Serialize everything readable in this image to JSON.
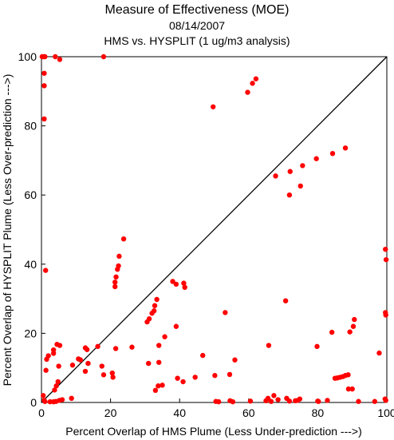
{
  "chart_data": {
    "type": "scatter",
    "title": "Measure of Effectiveness (MOE)",
    "subtitle": "08/14/2007",
    "subtitle2": "HMS vs. HYSPLIT  (1 ug/m3 analysis)",
    "xlabel": "Percent Overlap of HMS Plume (Less Under-prediction --->)",
    "ylabel": "Percent Overlap of HYSPLIT Plume (Less Over-prediction --->)",
    "xlim": [
      0,
      100
    ],
    "ylim": [
      0,
      100
    ],
    "xticks": [
      "0",
      "20",
      "40",
      "60",
      "80",
      "100"
    ],
    "yticks": [
      "0",
      "20",
      "40",
      "60",
      "80",
      "100"
    ],
    "grid": false,
    "reference_line": "1:1 diagonal",
    "marker_color": "#ff0000",
    "line_color": "#000000",
    "series": [
      {
        "points": [
          [
            0.2,
            100
          ],
          [
            0.6,
            100
          ],
          [
            1.0,
            100
          ],
          [
            4.0,
            100
          ],
          [
            5.3,
            99.2
          ],
          [
            18.0,
            100
          ],
          [
            0.8,
            95.2
          ],
          [
            0.8,
            91.6
          ],
          [
            0.8,
            82
          ],
          [
            1.2,
            38.2
          ],
          [
            0.5,
            2
          ],
          [
            0.8,
            0.6
          ],
          [
            1.0,
            0.3
          ],
          [
            2.5,
            0.2
          ],
          [
            3.5,
            0.2
          ],
          [
            4.2,
            0.3
          ],
          [
            5.2,
            0.6
          ],
          [
            6.0,
            0.8
          ],
          [
            8.7,
            1.2
          ],
          [
            1.3,
            9.3
          ],
          [
            1.5,
            12.5
          ],
          [
            2.0,
            13.5
          ],
          [
            3.5,
            14.2
          ],
          [
            3.5,
            15.2
          ],
          [
            4.5,
            16.8
          ],
          [
            5.3,
            16.5
          ],
          [
            3.8,
            3.6
          ],
          [
            4.3,
            4.8
          ],
          [
            4.8,
            6.0
          ],
          [
            5.0,
            10.5
          ],
          [
            9.0,
            10.8
          ],
          [
            10.7,
            12.6
          ],
          [
            11.3,
            12.3
          ],
          [
            12.7,
            15.8
          ],
          [
            13.2,
            15.3
          ],
          [
            13.5,
            11.3
          ],
          [
            12.7,
            9.0
          ],
          [
            16.3,
            16.2
          ],
          [
            17.5,
            10.5
          ],
          [
            18.0,
            8.0
          ],
          [
            20.5,
            8.5
          ],
          [
            20.7,
            7.3
          ],
          [
            21.5,
            15.6
          ],
          [
            21.3,
            33.5
          ],
          [
            21.3,
            34.8
          ],
          [
            21.6,
            36.3
          ],
          [
            22.0,
            38.5
          ],
          [
            22.3,
            39.5
          ],
          [
            22.5,
            42.3
          ],
          [
            23.8,
            47.3
          ],
          [
            26.2,
            16.0
          ],
          [
            30.6,
            23.3
          ],
          [
            31.2,
            24.2
          ],
          [
            31.0,
            11.3
          ],
          [
            32.0,
            25.8
          ],
          [
            32.6,
            26.5
          ],
          [
            32.8,
            28.0
          ],
          [
            33.4,
            29.8
          ],
          [
            33.0,
            3.5
          ],
          [
            33.8,
            4.8
          ],
          [
            34.0,
            11.6
          ],
          [
            34.0,
            16.5
          ],
          [
            35.7,
            19.0
          ],
          [
            35.0,
            5.0
          ],
          [
            38.0,
            35.0
          ],
          [
            39.0,
            34.2
          ],
          [
            39.0,
            22.0
          ],
          [
            39.4,
            7.0
          ],
          [
            41.0,
            6.0
          ],
          [
            41.2,
            34.5
          ],
          [
            41.5,
            33.3
          ],
          [
            44.5,
            7.3
          ],
          [
            46.7,
            13.6
          ],
          [
            49.7,
            85.5
          ],
          [
            50.2,
            7.8
          ],
          [
            50.5,
            0.3
          ],
          [
            51.3,
            0.2
          ],
          [
            53.2,
            26.0
          ],
          [
            54.5,
            8.1
          ],
          [
            54.6,
            0.5
          ],
          [
            55.4,
            0.2
          ],
          [
            56.0,
            12.3
          ],
          [
            59.7,
            89.7
          ],
          [
            60.5,
            0.4
          ],
          [
            61.1,
            92.3
          ],
          [
            62.1,
            93.6
          ],
          [
            65.0,
            0.5
          ],
          [
            65.6,
            1.2
          ],
          [
            65.8,
            16.5
          ],
          [
            66.5,
            0.3
          ],
          [
            67.3,
            2.0
          ],
          [
            67.8,
            65.5
          ],
          [
            68.5,
            0.8
          ],
          [
            70.7,
            29.4
          ],
          [
            71.0,
            1.2
          ],
          [
            71.8,
            0.4
          ],
          [
            71.8,
            60.0
          ],
          [
            72.0,
            66.8
          ],
          [
            73.5,
            0.5
          ],
          [
            74.2,
            0.6
          ],
          [
            74.8,
            1.0
          ],
          [
            75.0,
            62.6
          ],
          [
            75.6,
            68.5
          ],
          [
            79.6,
            70.5
          ],
          [
            79.8,
            16.2
          ],
          [
            80.0,
            0.4
          ],
          [
            80.2,
            0.3
          ],
          [
            82.8,
            0.6
          ],
          [
            84.1,
            20.3
          ],
          [
            84.3,
            72.0
          ],
          [
            85.0,
            7.0
          ],
          [
            85.7,
            7.1
          ],
          [
            86.5,
            7.3
          ],
          [
            87.3,
            7.5
          ],
          [
            88.0,
            73.6
          ],
          [
            88.0,
            7.8
          ],
          [
            88.8,
            8.0
          ],
          [
            88.9,
            3.9
          ],
          [
            89.3,
            20.4
          ],
          [
            90.0,
            3.9
          ],
          [
            90.3,
            22.0
          ],
          [
            90.6,
            24.0
          ],
          [
            91.8,
            0.3
          ],
          [
            96.5,
            0.3
          ],
          [
            97.8,
            14.3
          ],
          [
            99.6,
            44.3
          ],
          [
            99.8,
            41.3
          ],
          [
            99.6,
            26.0
          ],
          [
            99.7,
            25.3
          ],
          [
            99.5,
            1.0
          ],
          [
            99.7,
            0.6
          ]
        ]
      }
    ]
  }
}
